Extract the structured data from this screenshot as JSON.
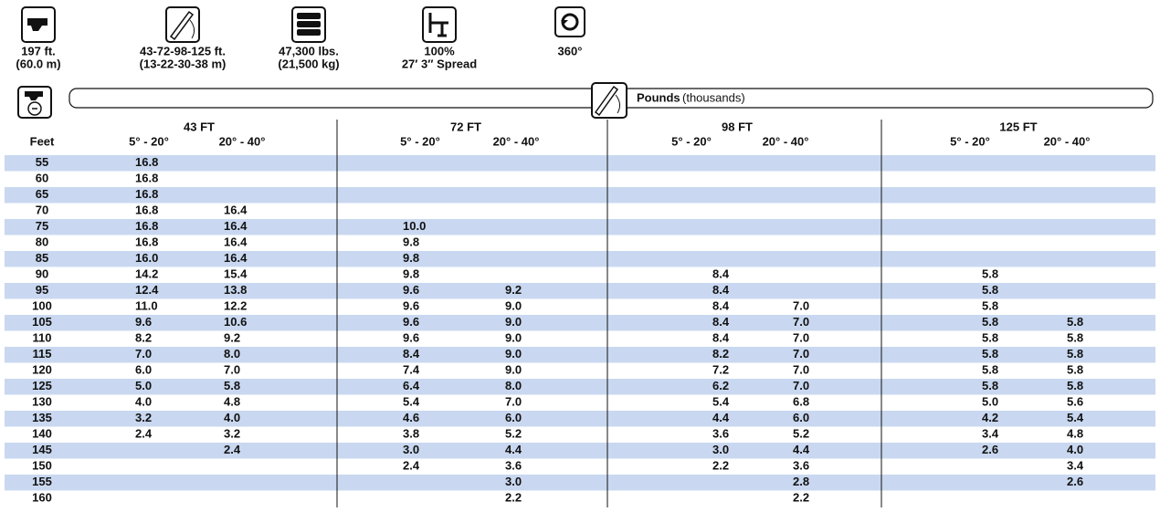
{
  "specs": [
    {
      "line1": "197 ft.",
      "line2": "(60.0 m)"
    },
    {
      "line1": "43-72-98-125 ft.",
      "line2": "(13-22-30-38 m)"
    },
    {
      "line1": "47,300 lbs.",
      "line2": "(21,500 kg)"
    },
    {
      "line1": "100%",
      "line2": "27′ 3″ Spread"
    },
    {
      "line1": "360°"
    }
  ],
  "bar": {
    "label_bold": "Pounds",
    "label_rest": "(thousands)"
  },
  "table": {
    "feet_header": "Feet",
    "groups": [
      {
        "name": "43 FT",
        "subheaders": [
          "5° - 20°",
          "20° - 40°"
        ]
      },
      {
        "name": "72 FT",
        "subheaders": [
          "5° - 20°",
          "20° - 40°"
        ]
      },
      {
        "name": "98 FT",
        "subheaders": [
          "5° - 20°",
          "20° - 40°"
        ]
      },
      {
        "name": "125 FT",
        "subheaders": [
          "5° - 20°",
          "20° - 40°"
        ]
      }
    ],
    "rows": [
      [
        "55",
        "16.8",
        null,
        null,
        null,
        null,
        null,
        null,
        null
      ],
      [
        "60",
        "16.8",
        null,
        null,
        null,
        null,
        null,
        null,
        null
      ],
      [
        "65",
        "16.8",
        null,
        null,
        null,
        null,
        null,
        null,
        null
      ],
      [
        "70",
        "16.8",
        "16.4",
        null,
        null,
        null,
        null,
        null,
        null
      ],
      [
        "75",
        "16.8",
        "16.4",
        "10.0",
        null,
        null,
        null,
        null,
        null
      ],
      [
        "80",
        "16.8",
        "16.4",
        "9.8",
        null,
        null,
        null,
        null,
        null
      ],
      [
        "85",
        "16.0",
        "16.4",
        "9.8",
        null,
        null,
        null,
        null,
        null
      ],
      [
        "90",
        "14.2",
        "15.4",
        "9.8",
        null,
        "8.4",
        null,
        "5.8",
        null
      ],
      [
        "95",
        "12.4",
        "13.8",
        "9.6",
        "9.2",
        "8.4",
        null,
        "5.8",
        null
      ],
      [
        "100",
        "11.0",
        "12.2",
        "9.6",
        "9.0",
        "8.4",
        "7.0",
        "5.8",
        null
      ],
      [
        "105",
        "9.6",
        "10.6",
        "9.6",
        "9.0",
        "8.4",
        "7.0",
        "5.8",
        "5.8"
      ],
      [
        "110",
        "8.2",
        "9.2",
        "9.6",
        "9.0",
        "8.4",
        "7.0",
        "5.8",
        "5.8"
      ],
      [
        "115",
        "7.0",
        "8.0",
        "8.4",
        "9.0",
        "8.2",
        "7.0",
        "5.8",
        "5.8"
      ],
      [
        "120",
        "6.0",
        "7.0",
        "7.4",
        "9.0",
        "7.2",
        "7.0",
        "5.8",
        "5.8"
      ],
      [
        "125",
        "5.0",
        "5.8",
        "6.4",
        "8.0",
        "6.2",
        "7.0",
        "5.8",
        "5.8"
      ],
      [
        "130",
        "4.0",
        "4.8",
        "5.4",
        "7.0",
        "5.4",
        "6.8",
        "5.0",
        "5.6"
      ],
      [
        "135",
        "3.2",
        "4.0",
        "4.6",
        "6.0",
        "4.4",
        "6.0",
        "4.2",
        "5.4"
      ],
      [
        "140",
        "2.4",
        "3.2",
        "3.8",
        "5.2",
        "3.6",
        "5.2",
        "3.4",
        "4.8"
      ],
      [
        "145",
        null,
        "2.4",
        "3.0",
        "4.4",
        "3.0",
        "4.4",
        "2.6",
        "4.0"
      ],
      [
        "150",
        null,
        null,
        "2.4",
        "3.6",
        "2.2",
        "3.6",
        null,
        "3.4"
      ],
      [
        "155",
        null,
        null,
        null,
        "3.0",
        null,
        "2.8",
        null,
        "2.6"
      ],
      [
        "160",
        null,
        null,
        null,
        "2.2",
        null,
        "2.2",
        null,
        null
      ]
    ]
  }
}
